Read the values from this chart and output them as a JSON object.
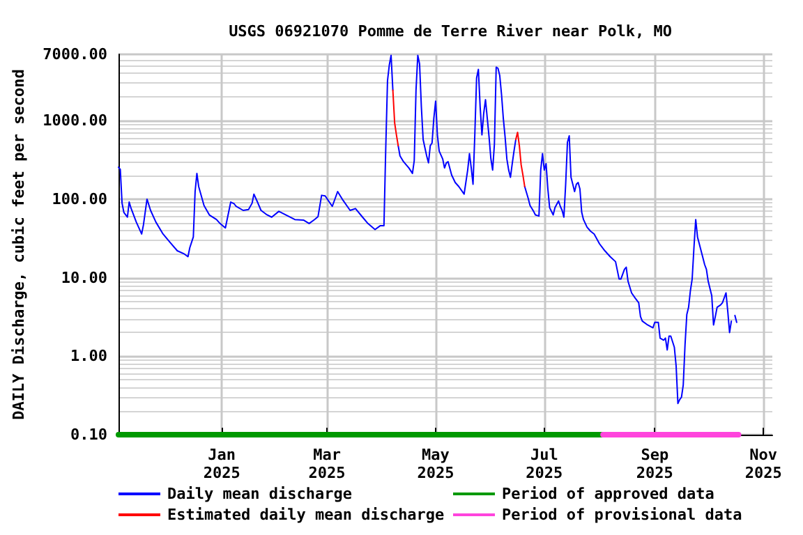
{
  "chart_data": {
    "type": "line",
    "title": "USGS 06921070 Pomme de Terre River near Polk, MO",
    "ylabel": "DAILY Discharge, cubic feet per second",
    "xlim": [
      "2024-11-04",
      "2025-11-06"
    ],
    "xticks": [
      {
        "value": "2025-01-01",
        "label": "Jan\n2025"
      },
      {
        "value": "2025-03-01",
        "label": "Mar\n2025"
      },
      {
        "value": "2025-05-01",
        "label": "May\n2025"
      },
      {
        "value": "2025-07-01",
        "label": "Jul\n2025"
      },
      {
        "value": "2025-09-01",
        "label": "Sep\n2025"
      },
      {
        "value": "2025-11-01",
        "label": "Nov\n2025"
      }
    ],
    "ylim": [
      0.1,
      7000
    ],
    "log": "y",
    "yticks": [
      {
        "value": 0.1,
        "label": "0.10"
      },
      {
        "value": 1,
        "label": "1.00"
      },
      {
        "value": 10,
        "label": "10.00"
      },
      {
        "value": 100,
        "label": "100.00"
      },
      {
        "value": 1000,
        "label": "1000.00"
      },
      {
        "value": 7000,
        "label": "7000.00"
      }
    ],
    "grid": true,
    "legend": "bottom",
    "marker": "none",
    "line_style": "solid",
    "series": [
      {
        "name": "Daily mean discharge",
        "color": "#0000ff",
        "x": [
          "2024-11-04",
          "2024-11-05",
          "2024-11-06",
          "2024-11-07",
          "2024-11-09",
          "2024-11-10",
          "2024-11-11",
          "2024-11-14",
          "2024-11-17",
          "2024-11-18",
          "2024-11-20",
          "2024-11-22",
          "2024-11-25",
          "2024-11-29",
          "2024-12-03",
          "2024-12-07",
          "2024-12-11",
          "2024-12-13",
          "2024-12-14",
          "2024-12-16",
          "2024-12-17",
          "2024-12-18",
          "2024-12-19",
          "2024-12-22",
          "2024-12-25",
          "2024-12-29",
          "2024-12-31",
          "2025-01-03",
          "2025-01-06",
          "2025-01-08",
          "2025-01-09",
          "2025-01-13",
          "2025-01-16",
          "2025-01-18",
          "2025-01-19",
          "2025-01-21",
          "2025-01-23",
          "2025-01-26",
          "2025-01-29",
          "2025-02-02",
          "2025-02-06",
          "2025-02-11",
          "2025-02-16",
          "2025-02-19",
          "2025-02-22",
          "2025-02-24",
          "2025-02-26",
          "2025-02-28",
          "2025-03-04",
          "2025-03-07",
          "2025-03-10",
          "2025-03-14",
          "2025-03-17",
          "2025-03-21",
          "2025-03-24",
          "2025-03-28",
          "2025-03-31",
          "2025-04-02",
          "2025-04-03",
          "2025-04-04",
          "2025-04-05",
          "2025-04-06",
          "2025-04-07",
          "2025-04-08",
          "2025-04-10",
          "2025-04-11",
          "2025-04-13",
          "2025-04-16",
          "2025-04-18",
          "2025-04-19",
          "2025-04-20",
          "2025-04-21",
          "2025-04-22",
          "2025-04-23",
          "2025-04-24",
          "2025-04-25",
          "2025-04-26",
          "2025-04-27",
          "2025-04-28",
          "2025-04-29",
          "2025-04-30",
          "2025-05-01",
          "2025-05-02",
          "2025-05-03",
          "2025-05-05",
          "2025-05-06",
          "2025-05-07",
          "2025-05-08",
          "2025-05-10",
          "2025-05-12",
          "2025-05-14",
          "2025-05-17",
          "2025-05-19",
          "2025-05-20",
          "2025-05-21",
          "2025-05-22",
          "2025-05-23",
          "2025-05-24",
          "2025-05-25",
          "2025-05-26",
          "2025-05-27",
          "2025-05-28",
          "2025-05-29",
          "2025-05-30",
          "2025-05-31",
          "2025-06-01",
          "2025-06-02",
          "2025-06-03",
          "2025-06-04",
          "2025-06-05",
          "2025-06-06",
          "2025-06-07",
          "2025-06-08",
          "2025-06-09",
          "2025-06-10",
          "2025-06-11",
          "2025-06-12",
          "2025-06-13",
          "2025-06-14",
          "2025-06-15",
          "2025-06-16",
          "2025-06-19",
          "2025-06-20",
          "2025-06-22",
          "2025-06-23",
          "2025-06-25",
          "2025-06-26",
          "2025-06-28",
          "2025-06-29",
          "2025-06-30",
          "2025-07-01",
          "2025-07-02",
          "2025-07-03",
          "2025-07-04",
          "2025-07-06",
          "2025-07-07",
          "2025-07-09",
          "2025-07-10",
          "2025-07-11",
          "2025-07-12",
          "2025-07-13",
          "2025-07-14",
          "2025-07-15",
          "2025-07-16",
          "2025-07-17",
          "2025-07-18",
          "2025-07-19",
          "2025-07-20",
          "2025-07-21",
          "2025-07-22",
          "2025-07-23",
          "2025-07-25",
          "2025-07-27",
          "2025-07-29",
          "2025-08-01",
          "2025-08-04",
          "2025-08-07",
          "2025-08-10",
          "2025-08-12",
          "2025-08-13",
          "2025-08-15",
          "2025-08-16",
          "2025-08-17",
          "2025-08-19",
          "2025-08-21",
          "2025-08-23",
          "2025-08-24",
          "2025-08-25",
          "2025-08-28",
          "2025-08-31",
          "2025-09-01",
          "2025-09-03",
          "2025-09-04",
          "2025-09-06",
          "2025-09-07",
          "2025-09-08",
          "2025-09-09",
          "2025-09-10",
          "2025-09-12",
          "2025-09-13",
          "2025-09-14",
          "2025-09-15",
          "2025-09-16",
          "2025-09-17",
          "2025-09-18",
          "2025-09-19",
          "2025-09-20",
          "2025-09-21",
          "2025-09-22",
          "2025-09-23",
          "2025-09-24",
          "2025-09-25",
          "2025-09-26",
          "2025-09-28",
          "2025-09-29",
          "2025-09-30",
          "2025-10-01",
          "2025-10-03",
          "2025-10-04",
          "2025-10-05",
          "2025-10-06",
          "2025-10-08",
          "2025-10-09",
          "2025-10-11",
          "2025-10-12",
          "2025-10-13",
          "2025-10-14",
          "2025-10-15",
          "2025-10-16",
          "2025-10-17"
        ],
        "values": [
          255,
          240,
          89,
          68,
          59,
          92,
          77,
          51,
          36,
          47,
          100,
          72,
          51,
          36,
          28,
          22,
          20,
          18.5,
          24,
          33,
          125,
          213,
          145,
          83,
          63,
          55,
          49,
          43,
          92,
          87,
          81,
          72,
          74,
          89,
          116,
          92,
          72,
          64,
          59,
          70,
          63,
          55,
          54,
          49,
          55,
          60,
          112,
          110,
          81,
          125,
          97,
          72,
          76,
          59,
          49,
          41,
          46,
          46,
          436,
          3230,
          5100,
          6800,
          2450,
          null,
          480,
          356,
          300,
          250,
          213,
          310,
          2450,
          6800,
          5280,
          1500,
          575,
          450,
          355,
          290,
          480,
          520,
          1070,
          1770,
          660,
          410,
          324,
          250,
          290,
          300,
          203,
          163,
          145,
          116,
          235,
          380,
          250,
          155,
          660,
          3500,
          4500,
          1500,
          660,
          1240,
          1850,
          1070,
          620,
          330,
          235,
          500,
          4800,
          4650,
          3750,
          2150,
          1070,
          620,
          324,
          235,
          190,
          283,
          410,
          575,
          null,
          null,
          145,
          102,
          83,
          70,
          63,
          61,
          235,
          380,
          235,
          283,
          135,
          78,
          63,
          78,
          95,
          81,
          72,
          59,
          155,
          530,
          640,
          190,
          155,
          125,
          155,
          163,
          135,
          68,
          55,
          44,
          39,
          36,
          27,
          22,
          18.5,
          16,
          9.6,
          9.6,
          12.8,
          13.6,
          9.0,
          6.4,
          5.5,
          4.8,
          3.2,
          2.8,
          2.5,
          2.3,
          2.7,
          2.7,
          1.7,
          1.6,
          1.7,
          1.2,
          1.8,
          1.8,
          1.3,
          0.75,
          0.25,
          0.28,
          0.3,
          0.43,
          1.4,
          3.4,
          4.2,
          6.8,
          9.6,
          24,
          55,
          33,
          27,
          18,
          14.7,
          12.8,
          9.0,
          5.9,
          2.5,
          3.2,
          4.2,
          4.5,
          4.8,
          6.4,
          3.7,
          2.0,
          2.8,
          null,
          3.3,
          2.7
        ]
      },
      {
        "name": "Estimated daily mean discharge",
        "color": "#ff0000",
        "x": [
          "2025-04-07",
          "2025-04-08",
          "2025-04-09",
          "2025-04-10",
          "2025-05-15",
          "2025-06-15",
          "2025-06-16",
          "2025-06-17",
          "2025-06-18",
          "2025-06-19",
          "2025-06-20"
        ],
        "values": [
          2450,
          940,
          660,
          480,
          null,
          575,
          710,
          480,
          275,
          203,
          145
        ]
      },
      {
        "name": "Period of approved data",
        "color": "#009900",
        "x": [
          "2024-11-04",
          "2025-08-03"
        ],
        "values": [
          0.1,
          0.1
        ]
      },
      {
        "name": "Period of provisional data",
        "color": "#ff44dd",
        "x": [
          "2025-08-03",
          "2025-10-18"
        ],
        "values": [
          0.1,
          0.1
        ]
      }
    ]
  }
}
